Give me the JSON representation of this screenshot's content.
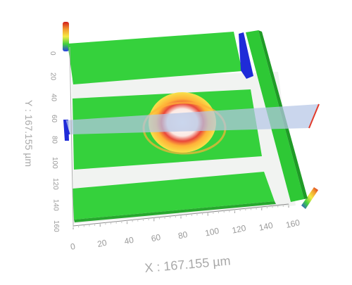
{
  "viewer": {
    "x_axis": {
      "title": "X : 167.155 µm",
      "ticks": [
        "0",
        "20",
        "40",
        "60",
        "80",
        "100",
        "120",
        "140",
        "160"
      ]
    },
    "y_axis": {
      "title": "Y : 167.155 µm",
      "ticks": [
        "0",
        "20",
        "40",
        "60",
        "80",
        "100",
        "120",
        "140",
        "160"
      ]
    },
    "surface_color": "#33d23a",
    "highlight_colors": [
      "#f7e24a",
      "#ffb238",
      "#e23b2b"
    ],
    "section_plane_color": "#b6c6e6",
    "ends_color": "#1f2bd8",
    "colorbar_colors": [
      "#d21c1c",
      "#f29b2f",
      "#f5ea43",
      "#41d03f",
      "#2b3fe6"
    ]
  }
}
